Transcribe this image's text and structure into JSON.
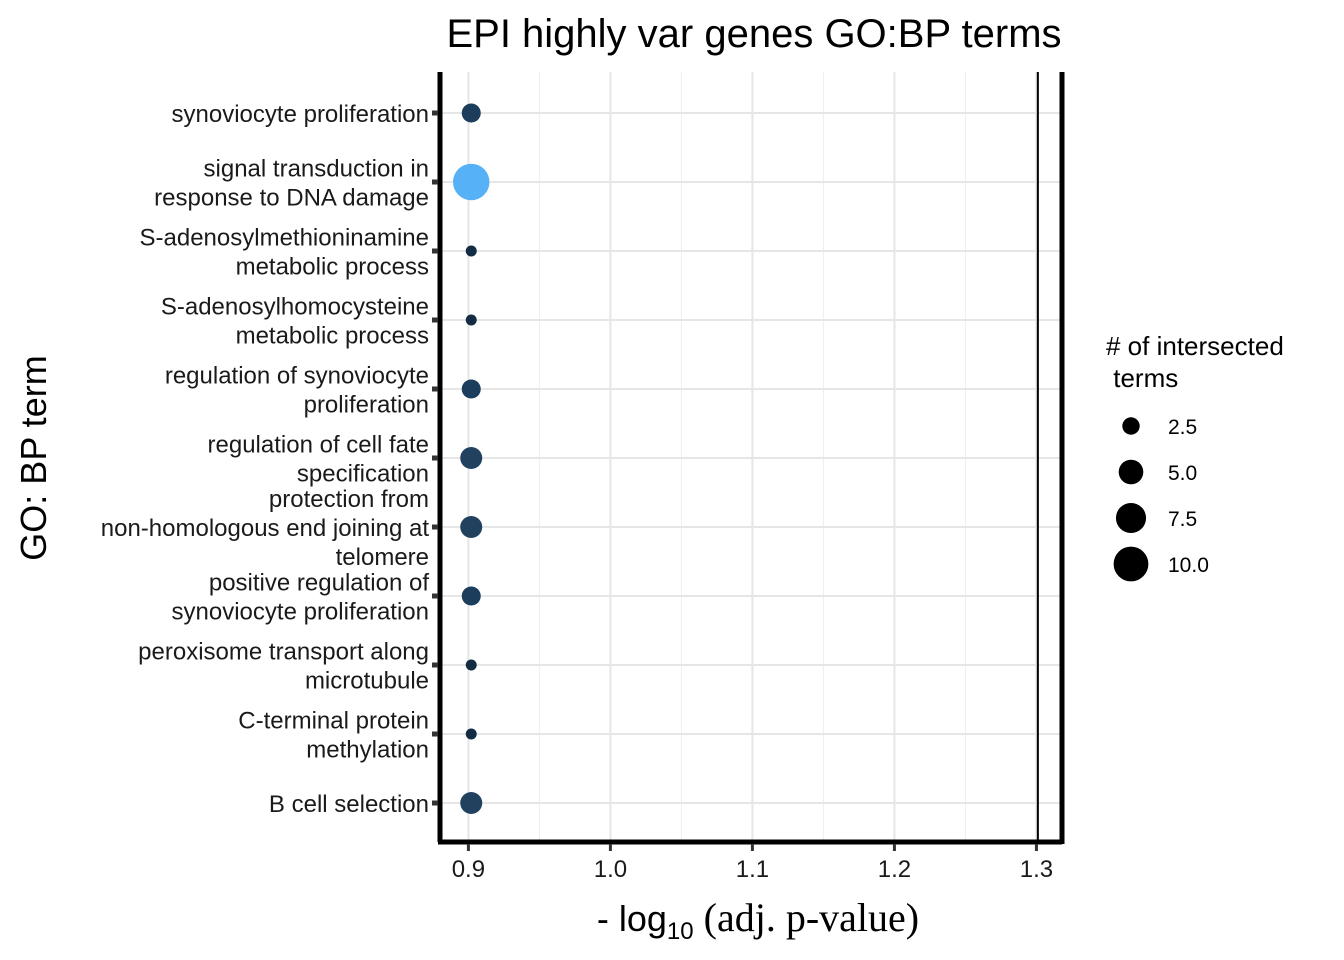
{
  "chart_data": {
    "type": "scatter",
    "title": "EPI highly var genes GO:BP terms",
    "ylabel": "GO: BP term",
    "xlabel": {
      "prefix": "- log",
      "subscript": "10",
      "suffix": "(adj. p-value)"
    },
    "xlim": [
      0.88,
      1.318
    ],
    "xticks": [
      0.9,
      1.0,
      1.1,
      1.2,
      1.3
    ],
    "xtick_labels": [
      "0.9",
      "1.0",
      "1.1",
      "1.2",
      "1.3"
    ],
    "threshold_line_x": 1.301,
    "grid": true,
    "categories": [
      [
        "synoviocyte proliferation"
      ],
      [
        "signal transduction in",
        "response to DNA damage"
      ],
      [
        "S-adenosylmethioninamine",
        "metabolic process"
      ],
      [
        "S-adenosylhomocysteine",
        "metabolic process"
      ],
      [
        "regulation of synoviocyte",
        "proliferation"
      ],
      [
        "regulation of cell fate",
        "specification"
      ],
      [
        "protection from",
        "non-homologous end joining at",
        "telomere"
      ],
      [
        "positive regulation of",
        "synoviocyte proliferation"
      ],
      [
        "peroxisome transport along",
        "microtubule"
      ],
      [
        "C-terminal protein",
        "methylation"
      ],
      [
        "B cell selection"
      ]
    ],
    "points": [
      {
        "x": 0.902,
        "size": 3,
        "color": "#1d3d5c"
      },
      {
        "x": 0.902,
        "size": 11,
        "color": "#56b1f7"
      },
      {
        "x": 0.902,
        "size": 1,
        "color": "#132b43"
      },
      {
        "x": 0.902,
        "size": 1,
        "color": "#132b43"
      },
      {
        "x": 0.902,
        "size": 3,
        "color": "#1d3d5c"
      },
      {
        "x": 0.902,
        "size": 4,
        "color": "#22415f"
      },
      {
        "x": 0.902,
        "size": 4,
        "color": "#22415f"
      },
      {
        "x": 0.902,
        "size": 3,
        "color": "#1d3d5c"
      },
      {
        "x": 0.902,
        "size": 1,
        "color": "#132b43"
      },
      {
        "x": 0.902,
        "size": 1,
        "color": "#132b43"
      },
      {
        "x": 0.902,
        "size": 4,
        "color": "#22415f"
      }
    ],
    "legend": {
      "title": "# of intersected\n terms",
      "position": "right",
      "entries": [
        {
          "label": "2.5",
          "size": 2.5
        },
        {
          "label": "5.0",
          "size": 5.0
        },
        {
          "label": "7.5",
          "size": 7.5
        },
        {
          "label": "10.0",
          "size": 10.0
        }
      ]
    }
  }
}
